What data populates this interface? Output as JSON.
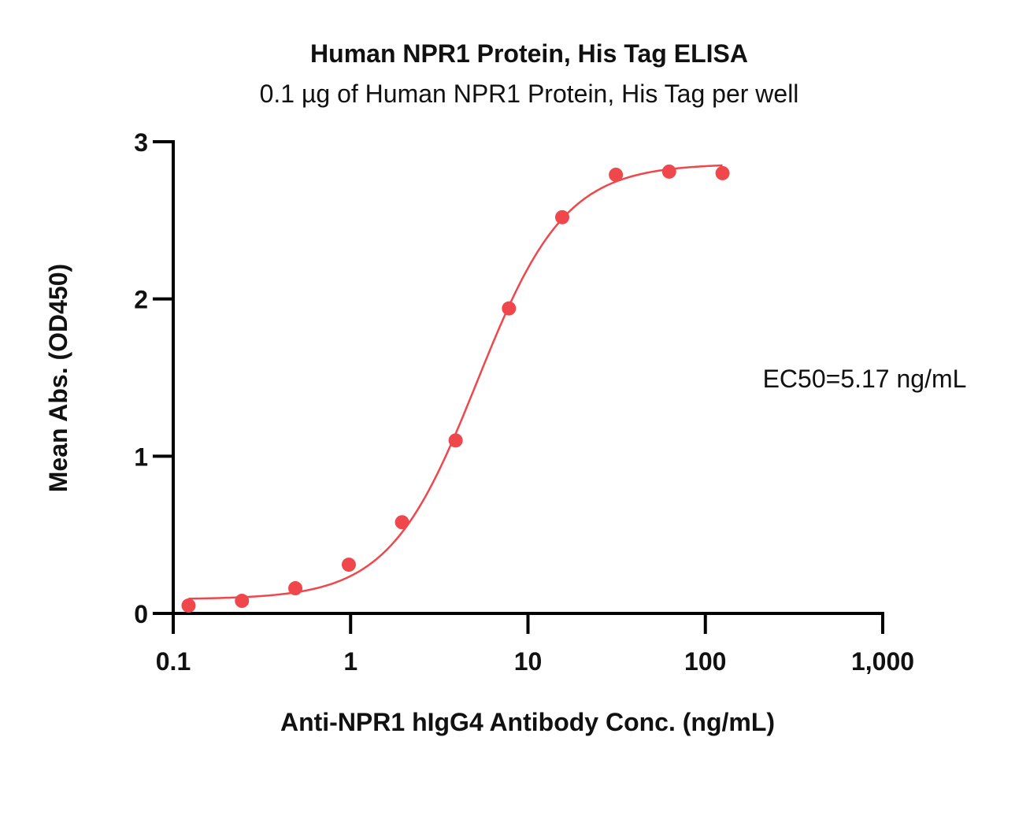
{
  "chart_data": {
    "type": "scatter",
    "title": "Human NPR1 Protein, His Tag ELISA",
    "subtitle": "0.1 µg of Human NPR1 Protein, His Tag per well",
    "xlabel": "Anti-NPR1 hIgG4 Antibody Conc. (ng/mL)",
    "ylabel": "Mean Abs. (OD450)",
    "x_scale": "log",
    "xlim": [
      0.1,
      1000
    ],
    "ylim": [
      0,
      3
    ],
    "x_ticks": [
      0.1,
      1,
      10,
      100,
      1000
    ],
    "x_tick_labels": [
      "0.1",
      "1",
      "10",
      "100",
      "1,000"
    ],
    "y_ticks": [
      0,
      1,
      2,
      3
    ],
    "y_tick_labels": [
      "0",
      "1",
      "2",
      "3"
    ],
    "grid": false,
    "annotation": "EC50=5.17 ng/mL",
    "series": [
      {
        "color": "#f0474c",
        "x": [
          0.122,
          0.244,
          0.488,
          0.977,
          1.95,
          3.91,
          7.81,
          15.6,
          31.3,
          62.5,
          125
        ],
        "y": [
          0.05,
          0.08,
          0.16,
          0.31,
          0.58,
          1.1,
          1.94,
          2.52,
          2.79,
          2.81,
          2.8
        ]
      }
    ],
    "fit": {
      "model": "4PL",
      "bottom": 0.09,
      "top": 2.86,
      "ec50": 5.17,
      "hill": 1.75,
      "x_range": [
        0.122,
        125
      ],
      "color": "#f0474c"
    }
  }
}
